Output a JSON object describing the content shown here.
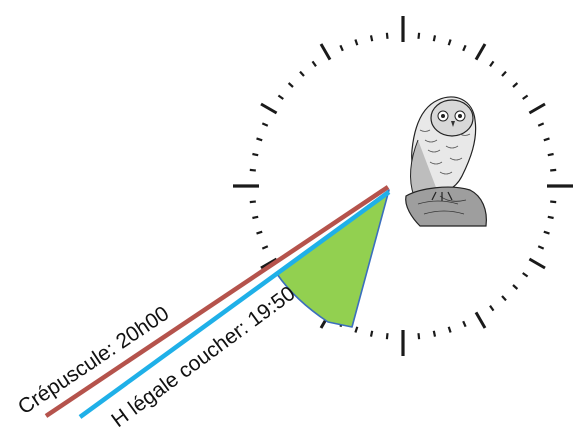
{
  "labels": {
    "crepuscule": "Crépuscule: 20h00",
    "coucher": "H légale coucher: 19:50"
  },
  "clock": {
    "major_ticks": 12,
    "minor_ticks": 60
  },
  "colors": {
    "crepuscule_line": "#b5534c",
    "coucher_line": "#1fb0e8",
    "sector_fill": "#92d050",
    "sector_edge": "#3b6fbd",
    "tick": "#1a1a1a"
  },
  "icons": {
    "bird": "owl-illustration"
  }
}
